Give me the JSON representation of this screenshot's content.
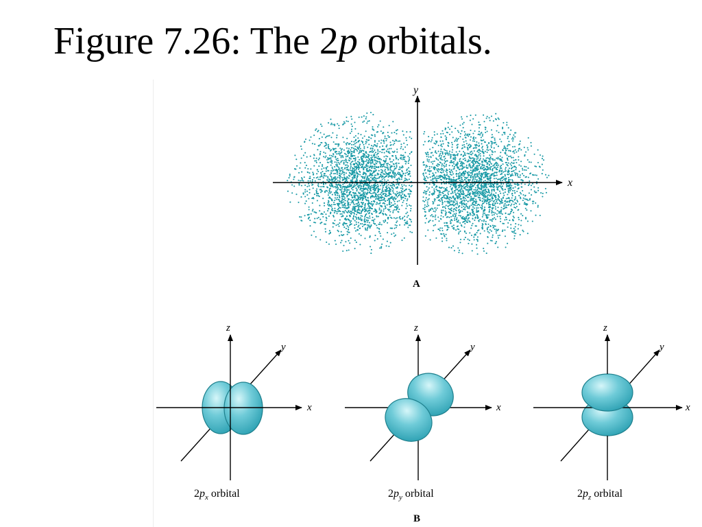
{
  "slide": {
    "title_prefix": "Figure 7.26: The 2",
    "title_italic": "p",
    "title_suffix": " orbitals."
  },
  "panel_a": {
    "label": "A",
    "x_axis_label": "x",
    "y_axis_label": "y"
  },
  "panel_b": {
    "label": "B",
    "orbitals": [
      {
        "prefix": "2",
        "p": "p",
        "subscript": "x",
        "suffix": " orbital",
        "axes": {
          "z": "z",
          "y": "y",
          "x": "x"
        }
      },
      {
        "prefix": "2",
        "p": "p",
        "subscript": "y",
        "suffix": " orbital",
        "axes": {
          "z": "z",
          "y": "y",
          "x": "x"
        }
      },
      {
        "prefix": "2",
        "p": "p",
        "subscript": "z",
        "suffix": " orbital",
        "axes": {
          "z": "z",
          "y": "y",
          "x": "x"
        }
      }
    ]
  },
  "colors": {
    "dot": "#1a9aa6",
    "lobe_dark": "#2aa3b5",
    "lobe_light": "#c8f0f4",
    "lobe_stroke": "#1d7f8c",
    "axis": "#000000"
  }
}
